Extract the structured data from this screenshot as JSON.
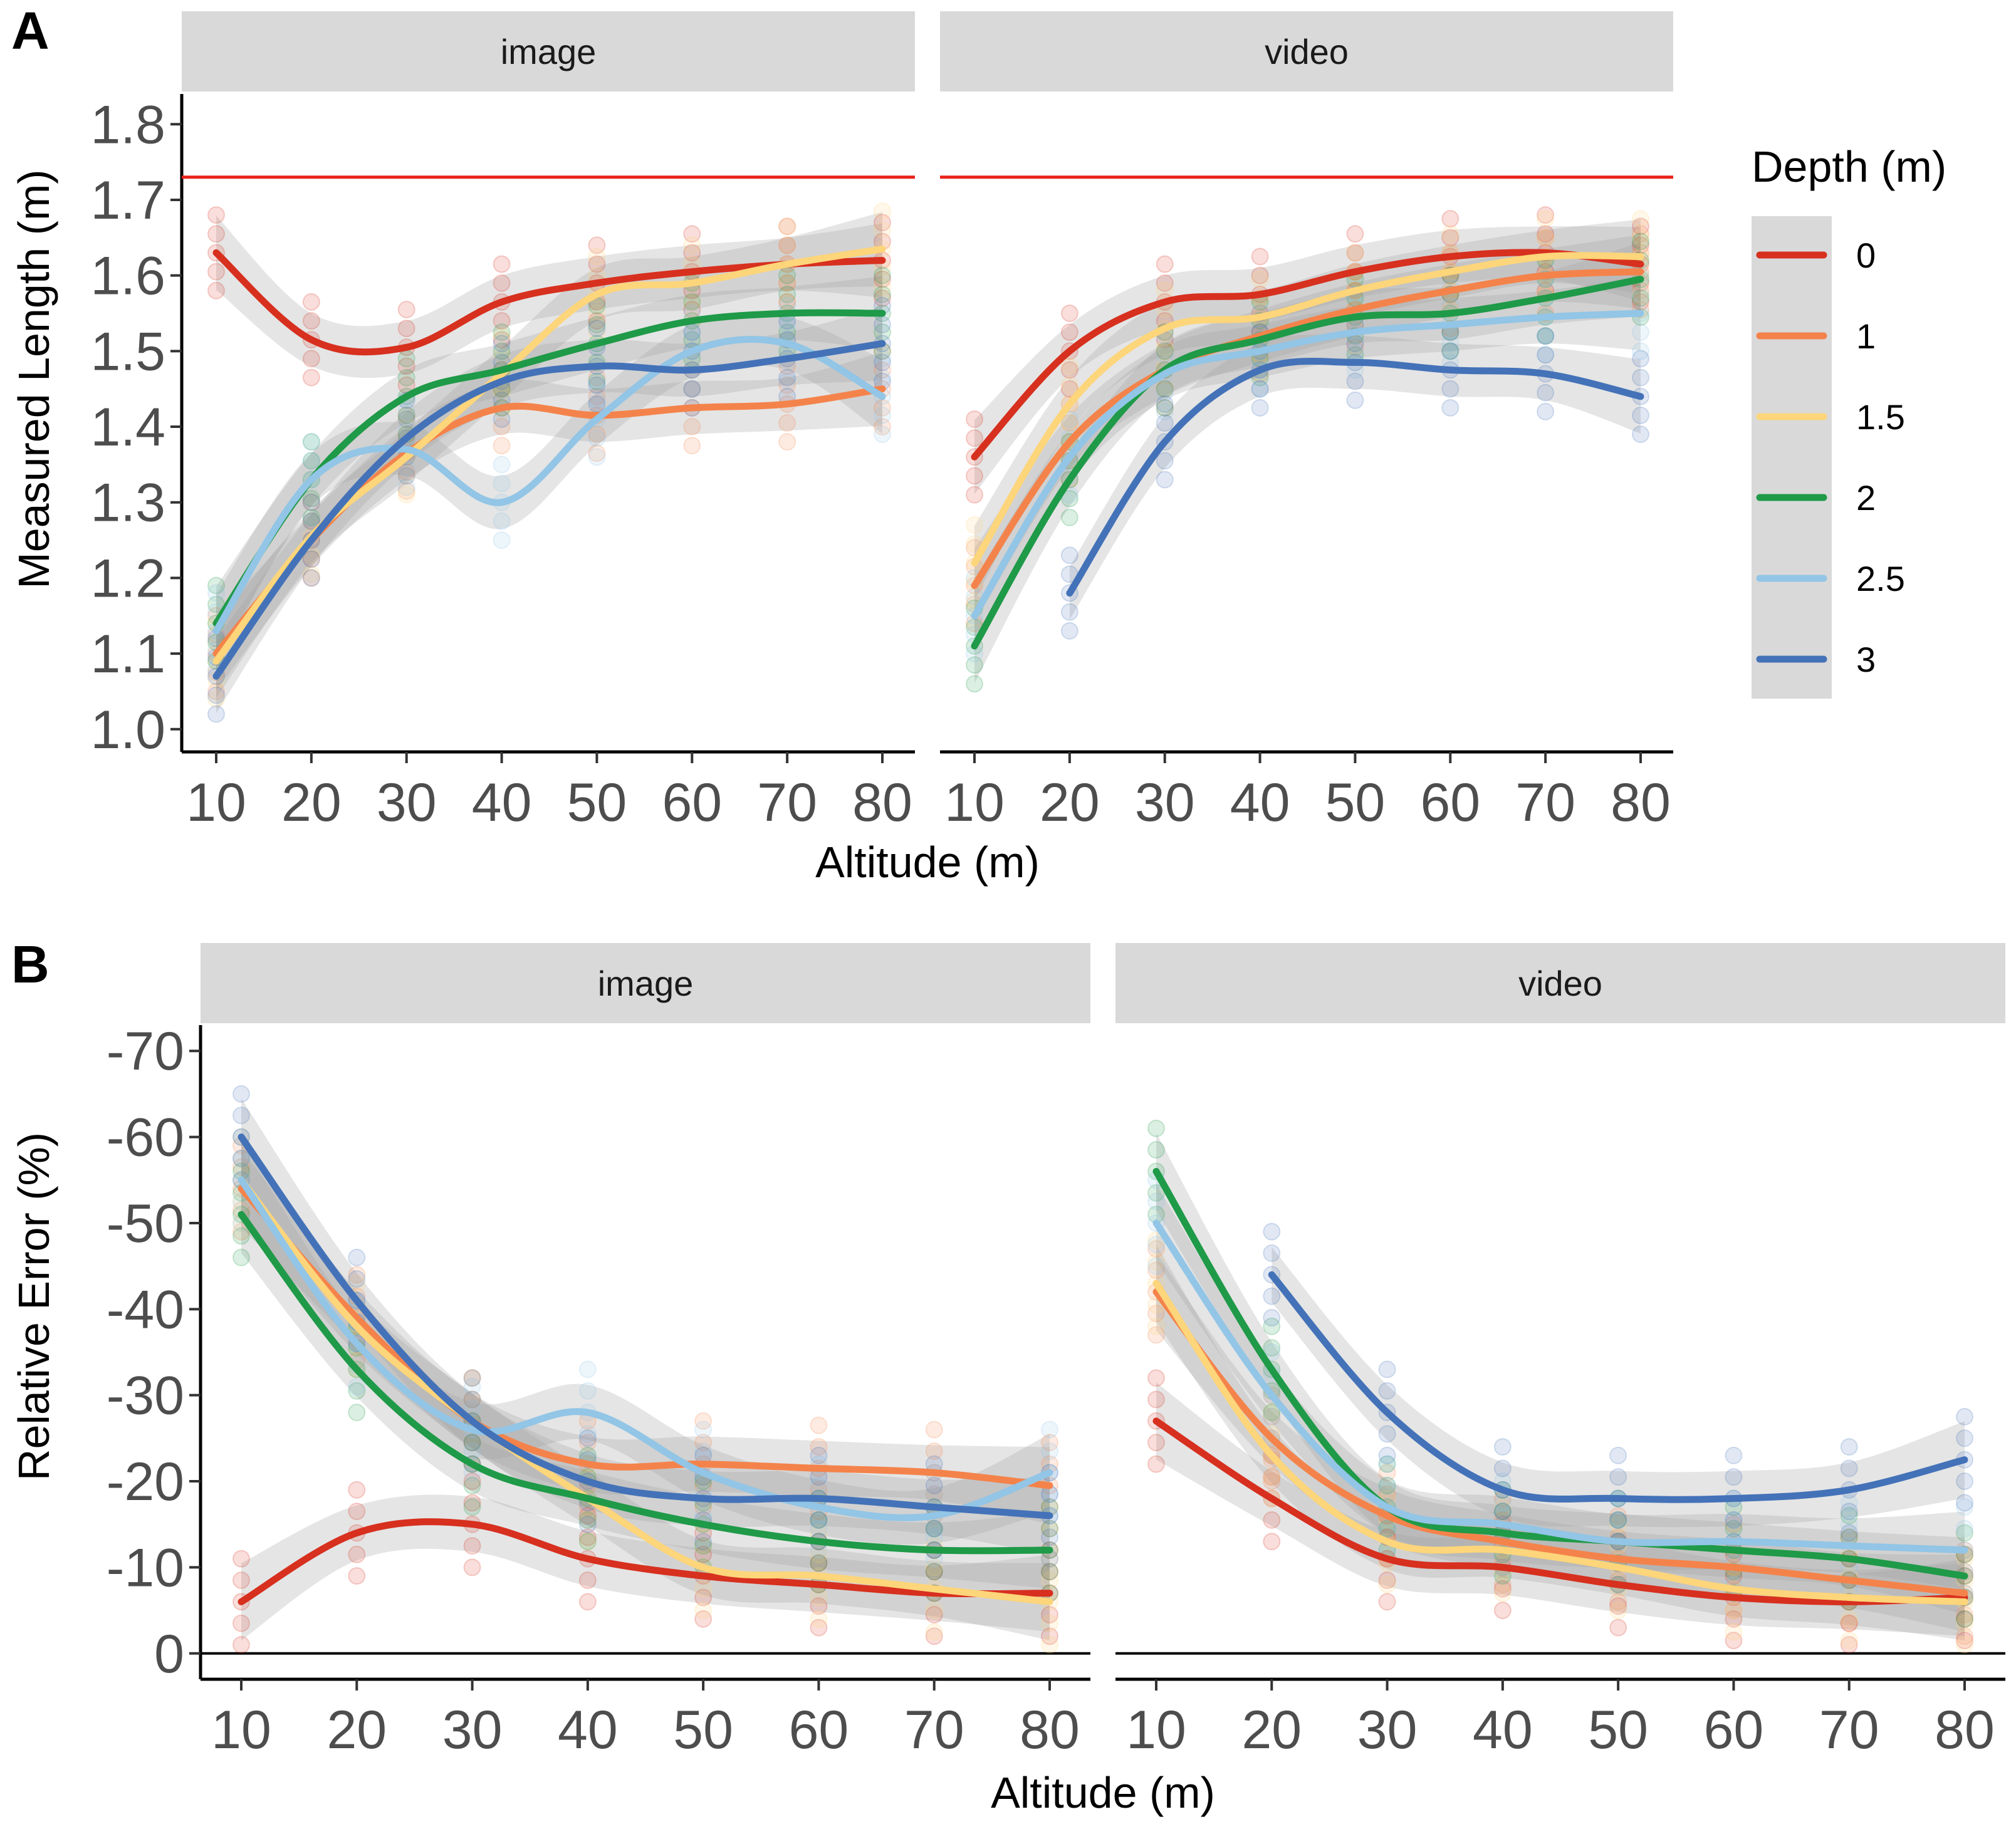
{
  "panel_labels": [
    "A",
    "B"
  ],
  "legend": {
    "title": "Depth (m)",
    "entries": [
      {
        "label": "0",
        "color": "#d7301f"
      },
      {
        "label": "1",
        "color": "#f4834b"
      },
      {
        "label": "1.5",
        "color": "#fdd57a"
      },
      {
        "label": "2",
        "color": "#1f9a48"
      },
      {
        "label": "2.5",
        "color": "#92c5e6"
      },
      {
        "label": "3",
        "color": "#4472b8"
      }
    ]
  },
  "chart_data": [
    {
      "type": "line",
      "panel": "A",
      "title": "",
      "xlabel": "Altitude (m)",
      "ylabel": "Measured Length (m)",
      "facets": [
        "image",
        "video"
      ],
      "x": [
        10,
        20,
        30,
        40,
        50,
        60,
        70,
        80
      ],
      "x_ticks": [
        "10",
        "20",
        "30",
        "40",
        "50",
        "60",
        "70",
        "80"
      ],
      "y_ticks": [
        "1.0",
        "1.1",
        "1.2",
        "1.3",
        "1.4",
        "1.5",
        "1.6",
        "1.7",
        "1.8"
      ],
      "ylim": [
        0.97,
        1.84
      ],
      "reference_line": {
        "y": 1.73,
        "color": "#e8231a"
      },
      "confidence_band": true,
      "series": {
        "image": [
          {
            "name": "0",
            "values": [
              1.63,
              1.515,
              1.505,
              1.565,
              1.59,
              1.605,
              1.615,
              1.62
            ]
          },
          {
            "name": "1",
            "values": [
              1.1,
              1.25,
              1.365,
              1.425,
              1.415,
              1.425,
              1.43,
              1.45
            ]
          },
          {
            "name": "1.5",
            "values": [
              1.09,
              1.255,
              1.36,
              1.47,
              1.575,
              1.59,
              1.615,
              1.635
            ]
          },
          {
            "name": "2",
            "values": [
              1.14,
              1.33,
              1.44,
              1.475,
              1.51,
              1.54,
              1.55,
              1.55
            ]
          },
          {
            "name": "2.5",
            "values": [
              1.13,
              1.33,
              1.37,
              1.3,
              1.41,
              1.5,
              1.51,
              1.44
            ]
          },
          {
            "name": "3",
            "values": [
              1.07,
              1.25,
              1.385,
              1.46,
              1.48,
              1.475,
              1.49,
              1.51
            ]
          }
        ],
        "video": [
          {
            "name": "0",
            "values": [
              1.36,
              1.5,
              1.565,
              1.575,
              1.605,
              1.625,
              1.63,
              1.615
            ]
          },
          {
            "name": "1",
            "values": [
              1.19,
              1.38,
              1.475,
              1.52,
              1.555,
              1.58,
              1.6,
              1.605
            ]
          },
          {
            "name": "1.5",
            "values": [
              1.22,
              1.43,
              1.53,
              1.545,
              1.58,
              1.605,
              1.625,
              1.625
            ]
          },
          {
            "name": "2",
            "values": [
              1.11,
              1.33,
              1.475,
              1.515,
              1.545,
              1.55,
              1.57,
              1.595
            ]
          },
          {
            "name": "2.5",
            "values": [
              1.15,
              1.36,
              1.47,
              1.5,
              1.525,
              1.535,
              1.545,
              1.55
            ]
          },
          {
            "name": "3",
            "values": [
              null,
              1.18,
              1.38,
              1.475,
              1.485,
              1.475,
              1.47,
              1.44
            ]
          }
        ]
      }
    },
    {
      "type": "line",
      "panel": "B",
      "title": "",
      "xlabel": "Altitude (m)",
      "ylabel": "Relative Error (%)",
      "facets": [
        "image",
        "video"
      ],
      "x": [
        10,
        20,
        30,
        40,
        50,
        60,
        70,
        80
      ],
      "x_ticks": [
        "10",
        "20",
        "30",
        "40",
        "50",
        "60",
        "70",
        "80"
      ],
      "y_ticks": [
        "0",
        "-10",
        "-20",
        "-30",
        "-40",
        "-50",
        "-60",
        "-70"
      ],
      "ylim": [
        -73,
        3
      ],
      "y_reversed": true,
      "confidence_band": true,
      "series": {
        "image": [
          {
            "name": "0",
            "values": [
              -6,
              -14,
              -15,
              -11,
              -9,
              -8,
              -7,
              -7
            ]
          },
          {
            "name": "1",
            "values": [
              -54,
              -39,
              -27,
              -22,
              -22,
              -21.5,
              -21,
              -19.5
            ]
          },
          {
            "name": "1.5",
            "values": [
              -55,
              -38,
              -27,
              -18,
              -10,
              -9,
              -7.5,
              -6
            ]
          },
          {
            "name": "2",
            "values": [
              -51,
              -33,
              -22,
              -18,
              -15,
              -13,
              -12,
              -12
            ]
          },
          {
            "name": "2.5",
            "values": [
              -55,
              -36,
              -26,
              -28,
              -21,
              -17,
              -16,
              -21
            ]
          },
          {
            "name": "3",
            "values": [
              -60,
              -41,
              -27,
              -20,
              -18,
              -18,
              -17,
              -16
            ]
          }
        ],
        "video": [
          {
            "name": "0",
            "values": [
              -27,
              -18,
              -11,
              -10,
              -8,
              -6.5,
              -6,
              -6.5
            ]
          },
          {
            "name": "1",
            "values": [
              -42,
              -25,
              -16,
              -13,
              -11,
              -10,
              -8.5,
              -7
            ]
          },
          {
            "name": "1.5",
            "values": [
              -43,
              -23,
              -13,
              -12,
              -10,
              -7.5,
              -6.5,
              -6
            ]
          },
          {
            "name": "2",
            "values": [
              -56,
              -33,
              -17,
              -14,
              -13,
              -12,
              -11,
              -9
            ]
          },
          {
            "name": "2.5",
            "values": [
              -50,
              -30,
              -17,
              -15,
              -13,
              -13,
              -12.5,
              -12
            ]
          },
          {
            "name": "3",
            "values": [
              null,
              -44,
              -28,
              -19,
              -18,
              -18,
              -19,
              -22.5
            ]
          }
        ]
      }
    }
  ]
}
